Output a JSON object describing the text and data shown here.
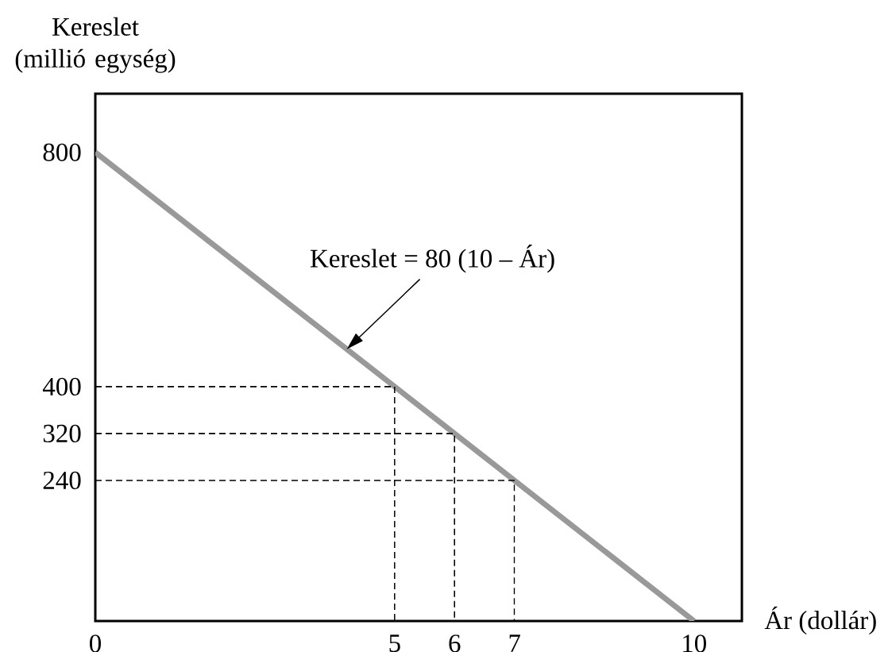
{
  "chart_data": {
    "type": "line",
    "xlabel": "Ár (dollár)",
    "ylabel": "Kereslet (millió egység)",
    "annotations": [
      {
        "text": "Kereslet = 80 (10 – Ár)",
        "x": 4.2,
        "y": 464
      }
    ],
    "series": [
      {
        "x": [
          0,
          10
        ],
        "values": [
          800,
          0
        ],
        "color": "#999999",
        "line_style": "solid"
      },
      {
        "x": [
          0,
          5,
          5
        ],
        "values": [
          400,
          400,
          0
        ],
        "color": "#000000",
        "line_style": "dashed"
      },
      {
        "x": [
          0,
          6,
          6
        ],
        "values": [
          320,
          320,
          0
        ],
        "color": "#000000",
        "line_style": "dashed"
      },
      {
        "x": [
          0,
          7,
          7
        ],
        "values": [
          240,
          240,
          0
        ],
        "color": "#000000",
        "line_style": "dashed"
      }
    ],
    "xlim": [
      0,
      10.8
    ],
    "ylim": [
      0,
      900
    ],
    "xticks": [
      0,
      5,
      6,
      7,
      10
    ],
    "yticks": [
      240,
      320,
      400,
      800
    ]
  }
}
